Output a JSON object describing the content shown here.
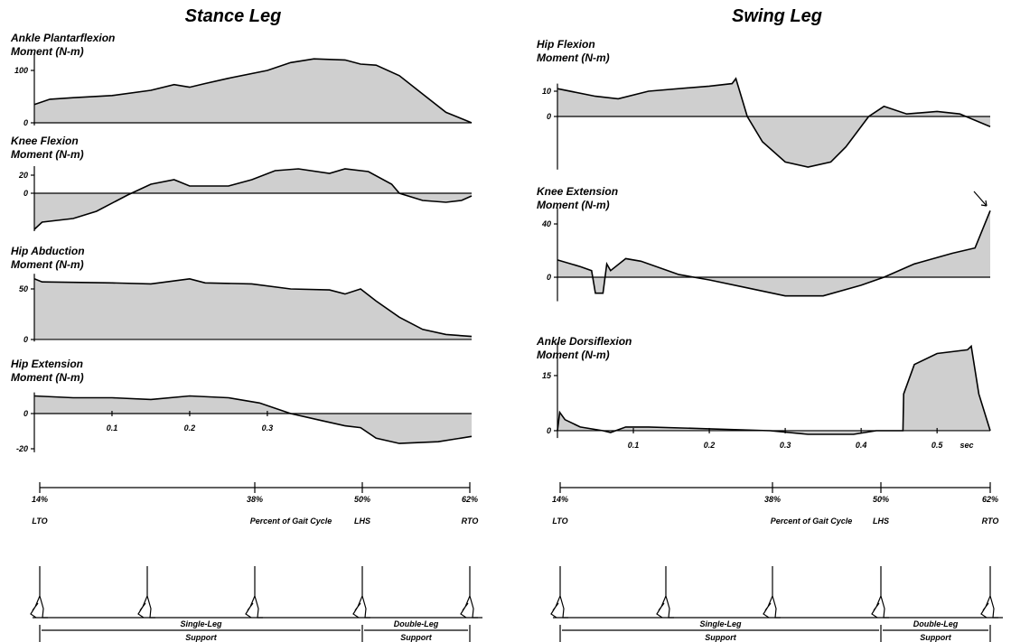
{
  "columns": [
    "Stance Leg",
    "Swing Leg"
  ],
  "chart_data": [
    {
      "type": "area",
      "title": "Ankle Plantarflexion",
      "subtitle": "Moment (N-m)",
      "color": "#cfcfcf",
      "x": [
        0,
        0.02,
        0.05,
        0.1,
        0.15,
        0.18,
        0.2,
        0.22,
        0.25,
        0.3,
        0.33,
        0.36,
        0.4,
        0.42,
        0.44,
        0.47,
        0.5,
        0.53,
        0.555,
        0.563
      ],
      "values": [
        35,
        45,
        48,
        52,
        62,
        73,
        68,
        75,
        85,
        100,
        115,
        122,
        120,
        112,
        110,
        90,
        55,
        20,
        5,
        0
      ],
      "xlim": [
        0,
        0.563
      ],
      "ylim": [
        -5,
        130
      ],
      "yticks": [
        0,
        100
      ]
    },
    {
      "type": "area",
      "title": "Knee Flexion",
      "subtitle": "Moment  (N-m)",
      "color": "#cfcfcf",
      "x": [
        0,
        0.01,
        0.05,
        0.08,
        0.12,
        0.15,
        0.18,
        0.2,
        0.25,
        0.28,
        0.31,
        0.34,
        0.38,
        0.4,
        0.43,
        0.46,
        0.47,
        0.5,
        0.53,
        0.55,
        0.563
      ],
      "values": [
        -40,
        -32,
        -28,
        -20,
        -2,
        10,
        15,
        8,
        8,
        15,
        25,
        27,
        22,
        27,
        24,
        10,
        0,
        -8,
        -10,
        -8,
        -3
      ],
      "xlim": [
        0,
        0.563
      ],
      "ylim": [
        -42,
        30
      ],
      "yticks": [
        0,
        20
      ]
    },
    {
      "type": "area",
      "title": "Hip Abduction",
      "subtitle": "Moment  (N-m)",
      "color": "#cfcfcf",
      "x": [
        0,
        0.01,
        0.1,
        0.15,
        0.2,
        0.22,
        0.28,
        0.33,
        0.38,
        0.4,
        0.42,
        0.44,
        0.47,
        0.5,
        0.53,
        0.563
      ],
      "values": [
        60,
        57,
        56,
        55,
        60,
        56,
        55,
        50,
        49,
        45,
        50,
        38,
        22,
        10,
        5,
        3
      ],
      "xlim": [
        0,
        0.563
      ],
      "ylim": [
        -2,
        65
      ],
      "yticks": [
        0,
        50
      ]
    },
    {
      "type": "area",
      "title": "Hip Extension",
      "subtitle": "Moment  (N-m)",
      "color": "#cfcfcf",
      "x": [
        0,
        0.05,
        0.1,
        0.15,
        0.2,
        0.25,
        0.29,
        0.33,
        0.37,
        0.4,
        0.42,
        0.44,
        0.47,
        0.52,
        0.563
      ],
      "values": [
        10,
        9,
        9,
        8,
        10,
        9,
        6,
        0,
        -4,
        -7,
        -8,
        -14,
        -17,
        -16,
        -13
      ],
      "xlim": [
        0,
        0.563
      ],
      "ylim": [
        -22,
        12
      ],
      "yticks": [
        0,
        -20
      ],
      "xticks": [
        0.1,
        0.2,
        0.3
      ]
    },
    {
      "type": "area",
      "title": "Hip Flexion",
      "subtitle": "Moment (N-m)",
      "color": "#cfcfcf",
      "x": [
        0,
        0.05,
        0.08,
        0.12,
        0.2,
        0.23,
        0.235,
        0.25,
        0.27,
        0.3,
        0.33,
        0.36,
        0.38,
        0.41,
        0.43,
        0.46,
        0.5,
        0.53,
        0.57
      ],
      "values": [
        11,
        8,
        7,
        10,
        12,
        13,
        15,
        0,
        -10,
        -18,
        -20,
        -18,
        -12,
        0,
        4,
        1,
        2,
        1,
        -4
      ],
      "xlim": [
        0,
        0.57
      ],
      "ylim": [
        -21,
        13
      ],
      "yticks": [
        0,
        10
      ]
    },
    {
      "type": "area",
      "title": "Knee Extension",
      "subtitle": "Moment (N-m)",
      "color": "#cfcfcf",
      "x": [
        0,
        0.03,
        0.045,
        0.05,
        0.06,
        0.065,
        0.07,
        0.09,
        0.11,
        0.16,
        0.2,
        0.25,
        0.3,
        0.35,
        0.4,
        0.43,
        0.47,
        0.52,
        0.55,
        0.57
      ],
      "values": [
        13,
        8,
        5,
        -12,
        -12,
        10,
        5,
        14,
        12,
        2,
        -2,
        -8,
        -14,
        -14,
        -6,
        0,
        10,
        18,
        22,
        50
      ],
      "xlim": [
        0,
        0.57
      ],
      "ylim": [
        -18,
        52
      ],
      "yticks": [
        0,
        40
      ]
    },
    {
      "type": "area",
      "title": "Ankle Dorsiflexion",
      "subtitle": "Moment (N-m)",
      "color": "#cfcfcf",
      "x": [
        0,
        0.003,
        0.01,
        0.03,
        0.06,
        0.07,
        0.09,
        0.12,
        0.2,
        0.28,
        0.33,
        0.39,
        0.42,
        0.455,
        0.456,
        0.47,
        0.5,
        0.54,
        0.545,
        0.555,
        0.57
      ],
      "values": [
        0,
        5,
        3,
        1,
        0,
        -0.5,
        1,
        1,
        0.5,
        0,
        -1,
        -1,
        0,
        0,
        10,
        18,
        21,
        22,
        23,
        10,
        0
      ],
      "xlim": [
        0,
        0.57
      ],
      "ylim": [
        -2,
        24
      ],
      "yticks": [
        0,
        15
      ],
      "xticks": [
        0.1,
        0.2,
        0.3,
        0.4,
        0.5
      ],
      "xlabel": "sec"
    }
  ],
  "timeline": {
    "percents": [
      "14%",
      "38%",
      "50%",
      "62%"
    ],
    "events": [
      "LTO",
      "LHS",
      "RTO"
    ],
    "label": "Percent of Gait Cycle"
  },
  "support": [
    {
      "line1": "Single-Leg",
      "line2": "Support"
    },
    {
      "line1": "Double-Leg",
      "line2": "Support"
    }
  ]
}
